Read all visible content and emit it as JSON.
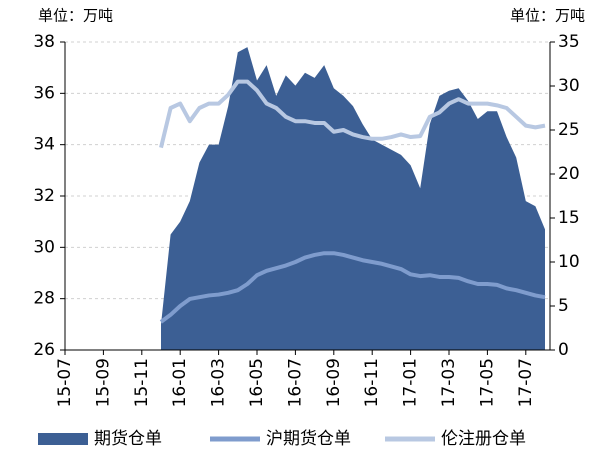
{
  "chart_data": {
    "type": "area_line",
    "y_label": "单位：万吨",
    "y2_label": "单位：万吨",
    "categories": [
      "15-07",
      null,
      null,
      null,
      "15-09",
      null,
      null,
      null,
      "15-11",
      null,
      null,
      null,
      "16-01",
      null,
      null,
      null,
      "16-03",
      null,
      null,
      null,
      "16-05",
      null,
      null,
      null,
      "16-07",
      null,
      null,
      null,
      "16-09",
      null,
      null,
      null,
      "16-11",
      null,
      null,
      null,
      "17-01",
      null,
      null,
      null,
      "17-03",
      null,
      null,
      null,
      "17-05",
      null,
      null,
      null,
      "17-07",
      null,
      null
    ],
    "series": [
      {
        "name": "期货仓单",
        "color": "#3c5f94",
        "kind": "area",
        "axis": "y",
        "values": [
          null,
          null,
          null,
          null,
          null,
          null,
          null,
          null,
          null,
          null,
          27,
          30.5,
          31,
          31.8,
          33.3,
          34,
          34,
          35.5,
          37.6,
          37.8,
          36.5,
          37.1,
          35.9,
          36.7,
          36.3,
          36.8,
          36.6,
          37.1,
          36.2,
          35.9,
          35.5,
          34.8,
          34.2,
          34,
          33.8,
          33.6,
          33.2,
          32.3,
          34.8,
          35.9,
          36.1,
          36.2,
          35.7,
          35,
          35.3,
          35.3,
          34.3,
          33.5,
          31.8,
          31.6,
          30.7
        ]
      },
      {
        "name": "沪期货仓单",
        "color": "#7f9ccd",
        "kind": "line",
        "axis": "y2",
        "values": [
          null,
          null,
          null,
          null,
          null,
          null,
          null,
          null,
          null,
          null,
          3.2,
          4,
          5,
          5.8,
          6,
          6.2,
          6.3,
          6.5,
          6.8,
          7.5,
          8.5,
          9,
          9.3,
          9.6,
          10,
          10.5,
          10.8,
          11,
          11,
          10.8,
          10.5,
          10.2,
          10,
          9.8,
          9.5,
          9.2,
          8.6,
          8.4,
          8.5,
          8.3,
          8.3,
          8.2,
          7.8,
          7.5,
          7.5,
          7.4,
          7,
          6.8,
          6.5,
          6.2,
          6
        ]
      },
      {
        "name": "伦注册仓单",
        "color": "#b8c8e2",
        "kind": "line",
        "axis": "y2",
        "values": [
          null,
          null,
          null,
          null,
          null,
          null,
          null,
          null,
          null,
          null,
          23,
          27.5,
          28,
          26,
          27.5,
          28,
          28,
          29,
          30.5,
          30.5,
          29.5,
          28,
          27.5,
          26.5,
          26,
          26,
          25.8,
          25.8,
          24.8,
          25,
          24.5,
          24.2,
          24,
          24,
          24.2,
          24.5,
          24.2,
          24.3,
          26.5,
          27,
          28,
          28.5,
          28,
          28,
          28,
          27.8,
          27.5,
          26.5,
          25.5,
          25.3,
          25.5
        ]
      }
    ],
    "ylim": [
      26,
      38
    ],
    "yticks": [
      26,
      28,
      30,
      32,
      34,
      36,
      38
    ],
    "y2lim": [
      0,
      35
    ],
    "y2ticks": [
      0,
      5,
      10,
      15,
      20,
      25,
      30,
      35
    ],
    "grid": true,
    "legend": "bottom"
  }
}
